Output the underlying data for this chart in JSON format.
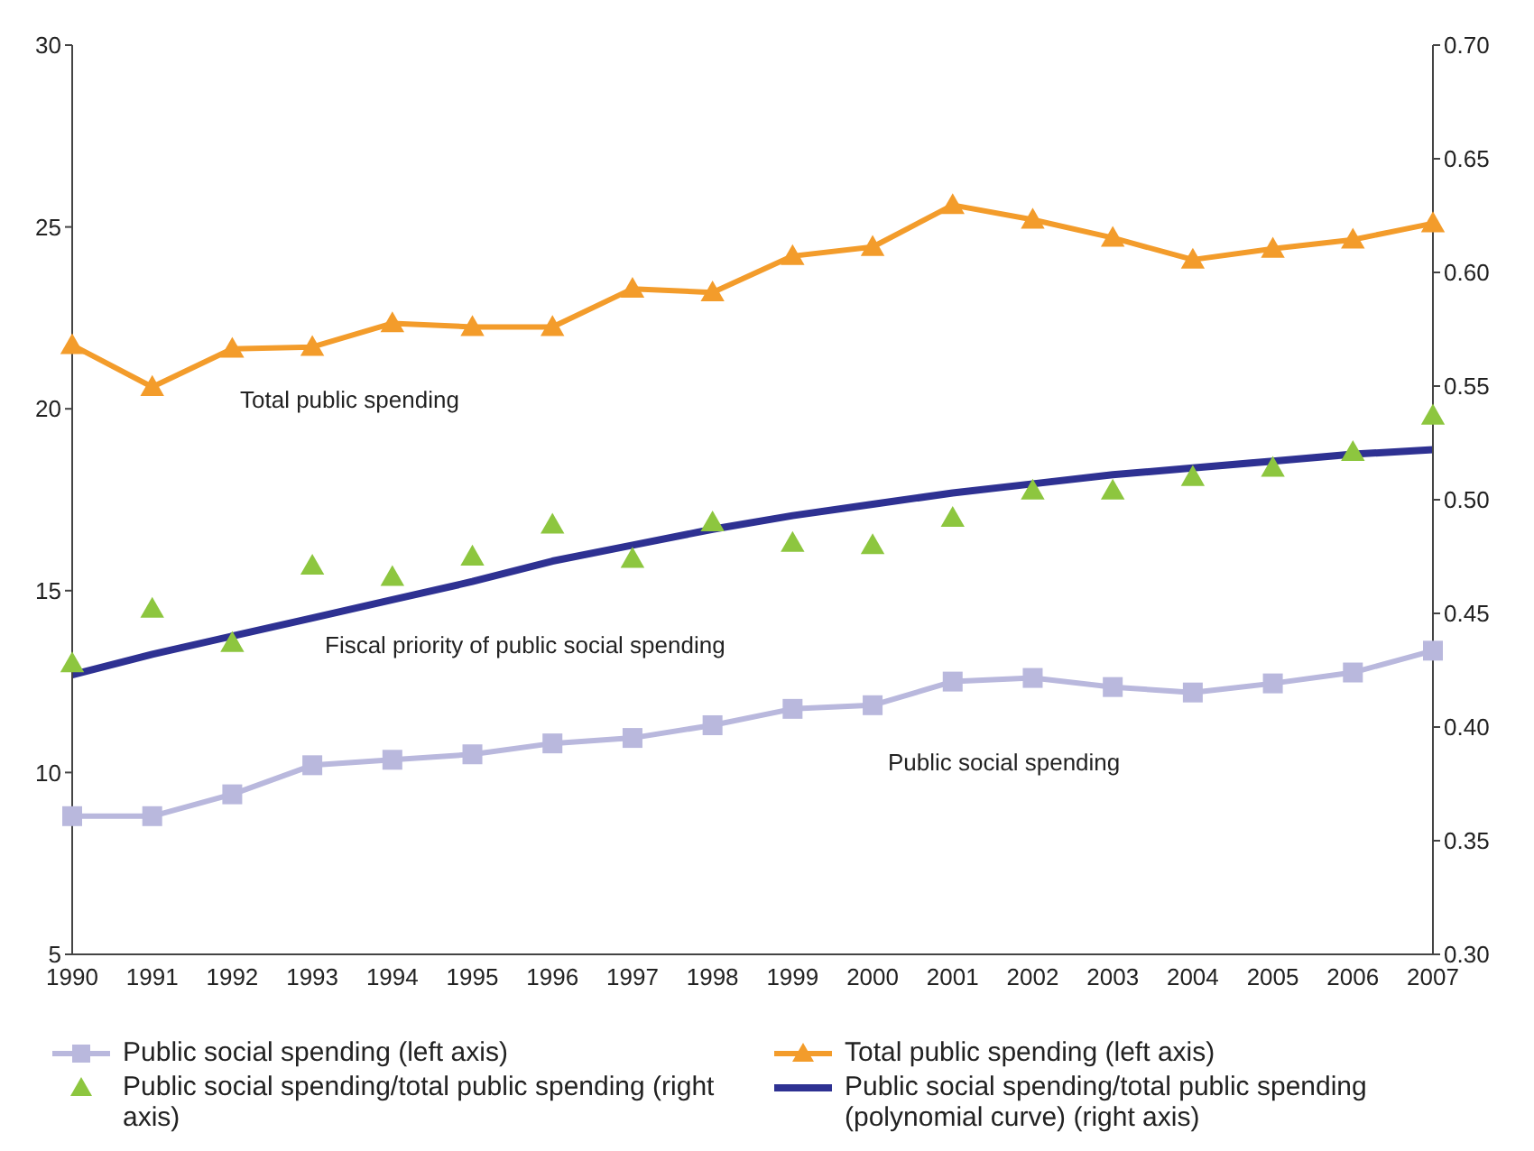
{
  "chart_data": {
    "type": "line",
    "categories": [
      "1990",
      "1991",
      "1992",
      "1993",
      "1994",
      "1995",
      "1996",
      "1997",
      "1998",
      "1999",
      "2000",
      "2001",
      "2002",
      "2003",
      "2004",
      "2005",
      "2006",
      "2007"
    ],
    "ylim": [
      5,
      30
    ],
    "yticks": [
      5,
      10,
      15,
      20,
      25,
      30
    ],
    "y2lim": [
      0.3,
      0.7
    ],
    "y2ticks": [
      {
        "value": 0.3,
        "label": "0.30"
      },
      {
        "value": 0.35,
        "label": "0.35"
      },
      {
        "value": 0.4,
        "label": "0.40"
      },
      {
        "value": 0.45,
        "label": "0.45"
      },
      {
        "value": 0.5,
        "label": "0.50"
      },
      {
        "value": 0.55,
        "label": "0.55"
      },
      {
        "value": 0.6,
        "label": "0.60"
      },
      {
        "value": 0.65,
        "label": "0.65"
      },
      {
        "value": 0.7,
        "label": "0.70"
      }
    ],
    "grid": false,
    "legend": "bottom",
    "series": [
      {
        "name": "Public social spending (left axis)",
        "marker": "square",
        "color": "#b9b8dd",
        "values": [
          8.8,
          8.8,
          9.4,
          10.2,
          10.35,
          10.5,
          10.8,
          10.95,
          11.3,
          11.75,
          11.85,
          12.5,
          12.6,
          12.35,
          12.2,
          12.45,
          12.75,
          13.35
        ]
      },
      {
        "name": "Total public spending (left axis)",
        "marker": "triangle",
        "color": "#f39c2b",
        "values": [
          21.75,
          20.6,
          21.65,
          21.7,
          22.35,
          22.25,
          22.25,
          23.3,
          23.2,
          24.2,
          24.45,
          25.6,
          25.2,
          24.7,
          24.1,
          24.4,
          24.65,
          25.1
        ]
      },
      {
        "name": "Public social spending/total public spending (right axis)",
        "type": "scatter",
        "marker": "triangle",
        "axis": "y2",
        "color": "#8dc63f",
        "values": [
          0.428,
          0.452,
          0.437,
          0.471,
          0.466,
          0.475,
          0.489,
          0.474,
          0.49,
          0.481,
          0.48,
          0.492,
          0.504,
          0.504,
          0.51,
          0.514,
          0.521,
          0.537
        ]
      },
      {
        "name": "Public social spending/total public spending (polynomial curve) (right axis)",
        "marker": "none",
        "axis": "y2",
        "color": "#2e3192",
        "values": [
          0.423,
          0.432,
          0.44,
          0.448,
          0.456,
          0.464,
          0.473,
          0.48,
          0.487,
          0.493,
          0.498,
          0.503,
          0.507,
          0.511,
          0.514,
          0.517,
          0.52,
          0.522
        ]
      }
    ],
    "annotations": [
      "Total public spending",
      "Fiscal priority of public social spending",
      "Public social spending"
    ]
  }
}
